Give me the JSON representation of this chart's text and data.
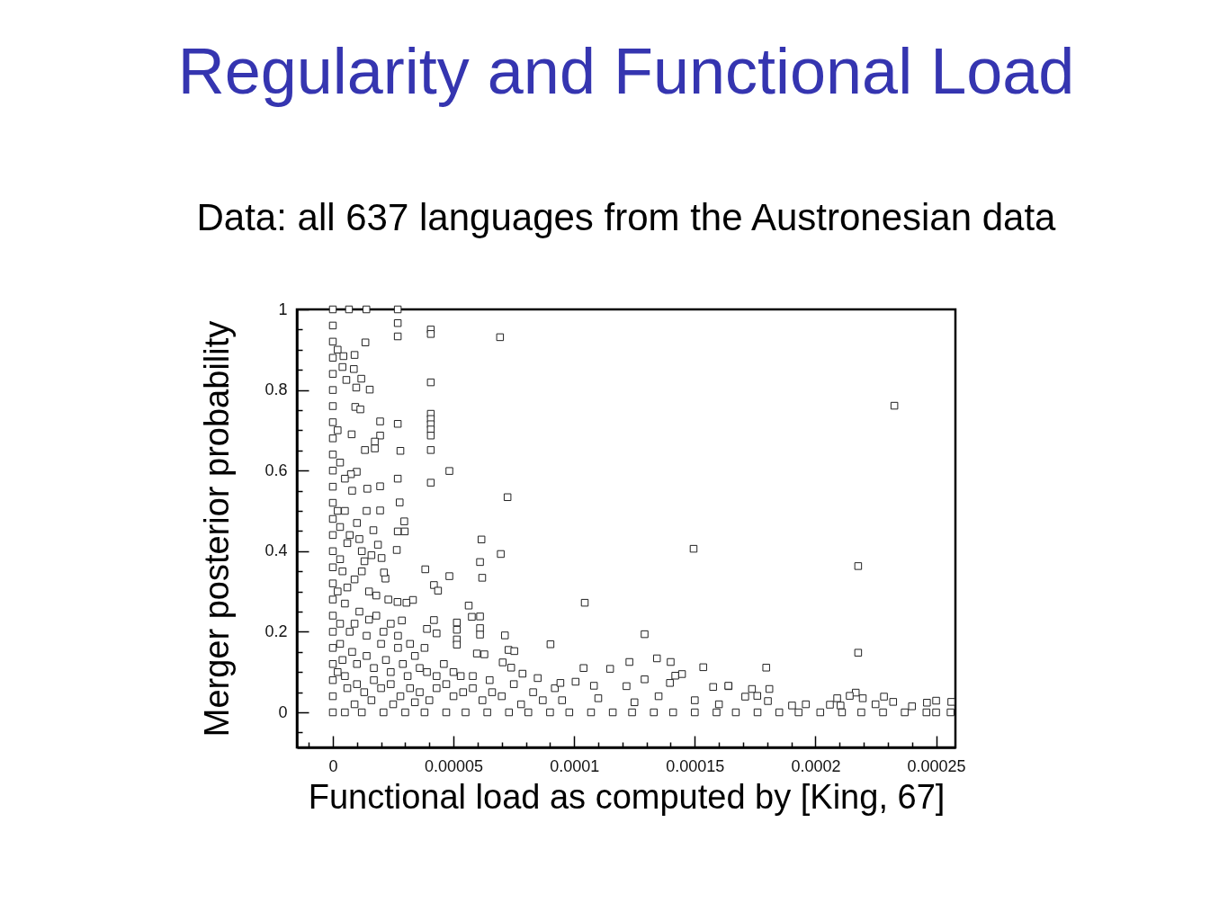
{
  "chart_data": {
    "type": "scatter",
    "title": "Regularity and Functional Load",
    "subtitle": "Data: all 637 languages from the Austronesian data",
    "xlabel": "Functional load as computed by [King, 67]",
    "ylabel": "Merger posterior probability",
    "color": "#222222",
    "marker": "square",
    "xlim": [
      -1.49e-05,
      0.000258
    ],
    "ylim": [
      -0.087,
      1.0
    ],
    "xticks": [
      {
        "value": -1e-05,
        "label": null
      },
      0,
      {
        "value": 1e-05,
        "label": null
      },
      {
        "value": 2e-05,
        "label": null
      },
      {
        "value": 3e-05,
        "label": null
      },
      {
        "value": 4e-05,
        "label": null
      },
      {
        "value": 5e-05,
        "label": "0.00005"
      },
      {
        "value": 6e-05,
        "label": null
      },
      {
        "value": 7e-05,
        "label": null
      },
      {
        "value": 8e-05,
        "label": null
      },
      {
        "value": 9e-05,
        "label": null
      },
      0.0001,
      {
        "value": 0.00011,
        "label": null
      },
      {
        "value": 0.00012,
        "label": null
      },
      {
        "value": 0.00013,
        "label": null
      },
      {
        "value": 0.00014,
        "label": null
      },
      0.00015,
      {
        "value": 0.00016,
        "label": null
      },
      {
        "value": 0.00017,
        "label": null
      },
      {
        "value": 0.00018,
        "label": null
      },
      {
        "value": 0.00019,
        "label": null
      },
      0.0002,
      {
        "value": 0.00021,
        "label": null
      },
      {
        "value": 0.00022,
        "label": null
      },
      {
        "value": 0.00023,
        "label": null
      },
      {
        "value": 0.00024,
        "label": null
      },
      0.00025
    ],
    "yticks": [
      {
        "value": -0.05,
        "label": null
      },
      0,
      {
        "value": 0.05,
        "label": null
      },
      {
        "value": 0.1,
        "label": null
      },
      {
        "value": 0.15,
        "label": null
      },
      0.2,
      {
        "value": 0.25,
        "label": null
      },
      {
        "value": 0.3,
        "label": null
      },
      {
        "value": 0.35,
        "label": null
      },
      0.4,
      {
        "value": 0.45,
        "label": null
      },
      {
        "value": 0.5,
        "label": null
      },
      {
        "value": 0.55,
        "label": null
      },
      0.6,
      {
        "value": 0.65,
        "label": null
      },
      {
        "value": 0.7,
        "label": null
      },
      {
        "value": 0.75,
        "label": null
      },
      0.8,
      {
        "value": 0.85,
        "label": null
      },
      {
        "value": 0.9,
        "label": null
      },
      {
        "value": 0.95,
        "label": null
      },
      1
    ],
    "x": [
      0,
      0,
      0,
      0,
      0,
      0,
      0,
      0,
      0,
      0,
      0,
      0,
      0,
      0,
      0,
      0,
      0,
      0,
      0,
      0,
      0,
      0,
      0,
      0,
      0,
      0,
      2e-06,
      2e-06,
      2e-06,
      2e-06,
      2e-06,
      6.7e-06,
      1.39e-05,
      2.69e-05,
      2.69e-05,
      2.69e-05,
      4.06e-05,
      4.06e-05,
      6.93e-05,
      1.35e-05,
      4.4e-06,
      9e-06,
      4e-06,
      8.7e-06,
      5.6e-06,
      1.18e-05,
      9.7e-06,
      1.53e-05,
      4.06e-05,
      9.3e-06,
      1.14e-05,
      1.96e-05,
      2.69e-05,
      4.06e-05,
      4.06e-05,
      4.06e-05,
      4.06e-05,
      4.06e-05,
      1.96e-05,
      1.74e-05,
      7.8e-06,
      1.33e-05,
      1.74e-05,
      2.8e-05,
      4.06e-05,
      4.83e-05,
      2.69e-05,
      4.06e-05,
      7.24e-05,
      1.96e-05,
      1.43e-05,
      9.9e-06,
      7.5e-06,
      1.96e-05,
      2.77e-05,
      2.96e-05,
      2.69e-05,
      2.98e-05,
      1.68e-05,
      6.16e-05,
      6.96e-05,
      2.65e-05,
      6.1e-05,
      6.19e-05,
      3.83e-05,
      4.83e-05,
      4.19e-05,
      4.36e-05,
      5.63e-05,
      5.76e-05,
      6.1e-05,
      4.19e-05,
      3.9e-05,
      4.3e-05,
      5.14e-05,
      5.14e-05,
      5.14e-05,
      5.14e-05,
      6.1e-05,
      6.1e-05,
      7.13e-05,
      7.28e-05,
      5.97e-05,
      6.28e-05,
      3.32e-05,
      3.05e-05,
      2.68e-05,
      2.86e-05,
      2.18e-05,
      2.02e-05,
      1.31e-05,
      1.87e-05,
      2.12e-05,
      5e-06,
      1e-05,
      1.4e-05,
      6e-06,
      1.2e-05,
      4e-06,
      9e-06,
      1.5e-05,
      5e-06,
      1.1e-05,
      1.8e-05,
      2.4e-05,
      7e-06,
      1.4e-05,
      2e-05,
      2.7e-05,
      3.4e-05,
      4e-06,
      1e-05,
      1.7e-05,
      2.4e-05,
      3.1e-05,
      3.9e-05,
      4.6e-05,
      5.3e-05,
      6e-06,
      1.3e-05,
      2e-05,
      2.8e-05,
      3.6e-05,
      4.3e-05,
      5e-05,
      5.8e-05,
      6.6e-05,
      7.5e-05,
      8.3e-05,
      9.2e-05,
      0.0001044,
      0.0001495,
      7.52e-05,
      9.02e-05,
      0.0001292,
      0.0001343,
      0.00014,
      0.0001535,
      0.0001229,
      0.0001149,
      0.0001039,
      0.0001447,
      0.0001419,
      0.000164,
      0.0001576,
      0.0001292,
      0.0001397,
      7.86e-05,
      8.49e-05,
      0.0001006,
      0.0001082,
      0.0001217,
      9.43e-05,
      7.04e-05,
      7.39e-05,
      0.0002327,
      0.0002177,
      0.0002177,
      0.0001796,
      0.0001809,
      0.0002167,
      0.0001737,
      0.0002284,
      0.00025,
      0.0002563,
      0.0002462,
      0.0002322,
      0.0002196,
      0.0001759,
      0.0001709,
      0.0001639,
      0.000206,
      0.0001903,
      0.0002104,
      0.0002142,
      0.0002249,
      0.0001803,
      5e-06,
      1.2e-05,
      2.1e-05,
      3e-05,
      3.8e-05,
      4.7e-05,
      5.5e-05,
      6.4e-05,
      7.3e-05,
      8.1e-05,
      9e-05,
      9.8e-05,
      0.000107,
      0.000116,
      0.000124,
      0.000133,
      0.000141,
      0.00015,
      0.000159,
      0.000167,
      0.000176,
      0.000185,
      0.000193,
      0.000202,
      0.000211,
      0.000219,
      0.000228,
      0.000237,
      0.000246,
      0.00025,
      0.000256,
      9.5e-05,
      0.00011,
      0.000125,
      0.000135,
      0.00015,
      0.00016,
      0.000196,
      0.000209,
      0.00024,
      3e-06,
      5e-06,
      8e-06,
      3e-06,
      7e-06,
      1.1e-05,
      1.6e-05,
      3e-06,
      6e-06,
      1.2e-05,
      1.8e-05,
      2.3e-05,
      3e-06,
      9e-06,
      1.5e-05,
      2.1e-05,
      2.7e-05,
      3.2e-05,
      3.8e-05,
      3e-06,
      8e-06,
      1.4e-05,
      2.2e-05,
      2.9e-05,
      3.6e-05,
      4.3e-05,
      5e-05,
      5.8e-05,
      6.5e-05,
      5e-06,
      1e-05,
      1.7e-05,
      2.4e-05,
      3.2e-05,
      4e-05,
      4.7e-05,
      5.4e-05,
      6.2e-05,
      7e-05,
      7.8e-05,
      8.7e-05,
      9e-06,
      1.6e-05,
      2.5e-05,
      3.4e-05
    ],
    "values": [
      1.0,
      0.96,
      0.92,
      0.88,
      0.84,
      0.8,
      0.76,
      0.72,
      0.68,
      0.64,
      0.6,
      0.56,
      0.52,
      0.48,
      0.44,
      0.4,
      0.36,
      0.32,
      0.28,
      0.24,
      0.2,
      0.16,
      0.12,
      0.08,
      0.04,
      0,
      0.9,
      0.7,
      0.5,
      0.3,
      0.1,
      1.0,
      1.0,
      1.0,
      0.966,
      0.933,
      0.95,
      0.939,
      0.931,
      0.918,
      0.884,
      0.887,
      0.857,
      0.852,
      0.825,
      0.828,
      0.806,
      0.801,
      0.819,
      0.758,
      0.752,
      0.722,
      0.716,
      0.741,
      0.728,
      0.715,
      0.702,
      0.687,
      0.687,
      0.672,
      0.69,
      0.651,
      0.655,
      0.649,
      0.651,
      0.599,
      0.58,
      0.57,
      0.534,
      0.561,
      0.555,
      0.597,
      0.591,
      0.501,
      0.521,
      0.474,
      0.449,
      0.449,
      0.452,
      0.429,
      0.393,
      0.403,
      0.373,
      0.334,
      0.355,
      0.338,
      0.316,
      0.302,
      0.265,
      0.237,
      0.238,
      0.229,
      0.207,
      0.196,
      0.223,
      0.205,
      0.181,
      0.168,
      0.209,
      0.193,
      0.191,
      0.155,
      0.146,
      0.144,
      0.279,
      0.272,
      0.274,
      0.228,
      0.332,
      0.383,
      0.375,
      0.416,
      0.347,
      0.5,
      0.47,
      0.5,
      0.42,
      0.4,
      0.35,
      0.33,
      0.3,
      0.27,
      0.25,
      0.24,
      0.22,
      0.2,
      0.19,
      0.17,
      0.16,
      0.14,
      0.13,
      0.12,
      0.11,
      0.1,
      0.09,
      0.1,
      0.12,
      0.09,
      0.06,
      0.05,
      0.06,
      0.04,
      0.05,
      0.06,
      0.04,
      0.06,
      0.05,
      0.07,
      0.05,
      0.06,
      0.272,
      0.406,
      0.152,
      0.169,
      0.194,
      0.134,
      0.125,
      0.112,
      0.125,
      0.108,
      0.11,
      0.095,
      0.091,
      0.065,
      0.063,
      0.082,
      0.073,
      0.096,
      0.085,
      0.076,
      0.066,
      0.065,
      0.073,
      0.124,
      0.111,
      0.761,
      0.363,
      0.148,
      0.111,
      0.058,
      0.049,
      0.058,
      0.039,
      0.029,
      0.026,
      0.024,
      0.026,
      0.035,
      0.041,
      0.039,
      0.066,
      0.019,
      0.017,
      0.017,
      0.041,
      0.02,
      0.028,
      0,
      0,
      0,
      0,
      0,
      0,
      0,
      0,
      0,
      0,
      0,
      0,
      0,
      0,
      0,
      0,
      0,
      0,
      0,
      0,
      0,
      0,
      0,
      0,
      0,
      0,
      0,
      0,
      0,
      0,
      0,
      0.03,
      0.035,
      0.025,
      0.04,
      0.03,
      0.02,
      0.02,
      0.035,
      0.015,
      0.62,
      0.58,
      0.55,
      0.46,
      0.44,
      0.43,
      0.39,
      0.38,
      0.31,
      0.35,
      0.29,
      0.28,
      0.22,
      0.22,
      0.23,
      0.2,
      0.19,
      0.17,
      0.16,
      0.17,
      0.15,
      0.14,
      0.13,
      0.12,
      0.11,
      0.09,
      0.1,
      0.09,
      0.08,
      0.09,
      0.07,
      0.08,
      0.07,
      0.06,
      0.03,
      0.07,
      0.05,
      0.03,
      0.04,
      0.02,
      0.03,
      0.02,
      0.03,
      0.02,
      0.025
    ]
  }
}
